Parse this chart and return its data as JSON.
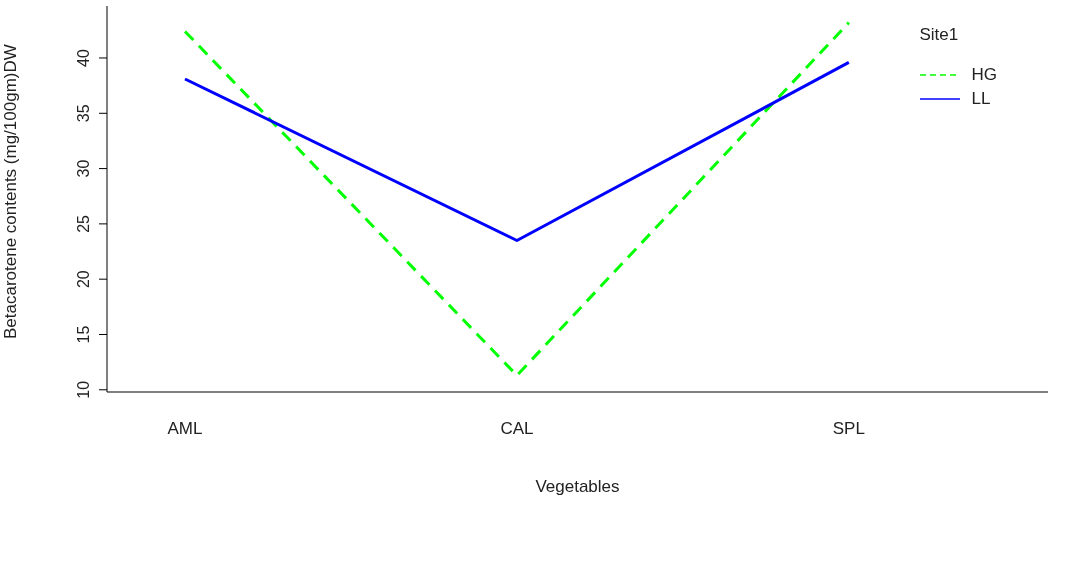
{
  "chart_data": {
    "type": "line",
    "xlabel": "Vegetables",
    "ylabel": "Betacarotene contents (mg/100gm)DW",
    "legend_title": "Site1",
    "categories": [
      "AML",
      "CAL",
      "SPL"
    ],
    "series": [
      {
        "name": "HG",
        "color": "#00ff00",
        "line_style": "dashed",
        "values": [
          42.4,
          11.3,
          43.2
        ]
      },
      {
        "name": "LL",
        "color": "#0000ff",
        "line_style": "solid",
        "values": [
          38.1,
          23.5,
          39.6
        ]
      }
    ],
    "ylim": [
      9.8,
      44.7
    ],
    "yticks": [
      10,
      15,
      20,
      25,
      30,
      35,
      40
    ],
    "grid": false,
    "legend": "top right",
    "marker": "none"
  }
}
